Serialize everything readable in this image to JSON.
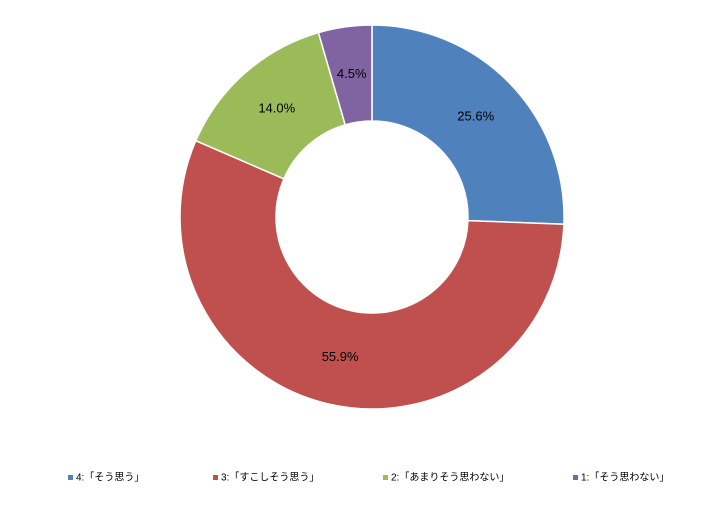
{
  "chart_data": {
    "type": "pie",
    "categories": [
      "4:「そう思う」",
      "3:「すこしそう思う」",
      "2:「あまりそう思わない」",
      "1:「そう思わない」"
    ],
    "values": [
      25.6,
      55.9,
      14.0,
      4.5
    ],
    "value_labels": [
      "25.6%",
      "55.9%",
      "14.0%",
      "4.5%"
    ],
    "colors": [
      "#4f81bd",
      "#c0504d",
      "#9bbb59",
      "#8064a2"
    ],
    "legend": "bottom"
  }
}
